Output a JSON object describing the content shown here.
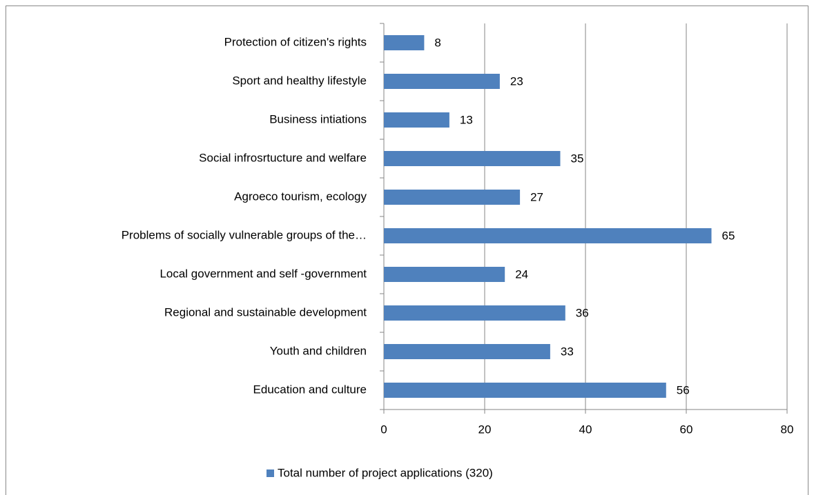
{
  "chart_data": {
    "type": "bar",
    "orientation": "horizontal",
    "categories": [
      "Protection of citizen's rights",
      "Sport and healthy lifestyle",
      "Business intiations",
      "Social infrosrtucture and welfare",
      "Agroeco tourism, ecology",
      "Problems of socially vulnerable groups of the…",
      "Local government and self -government",
      "Regional and sustainable development",
      "Youth and children",
      "Education and culture"
    ],
    "series": [
      {
        "name": "Total number of project applications (320)",
        "color": "#4f81bd",
        "values": [
          8,
          23,
          13,
          35,
          27,
          65,
          24,
          36,
          33,
          56
        ]
      }
    ],
    "xlim": [
      0,
      80
    ],
    "xticks": [
      0,
      20,
      40,
      60,
      80
    ],
    "grid": true,
    "legend": "bottom"
  }
}
